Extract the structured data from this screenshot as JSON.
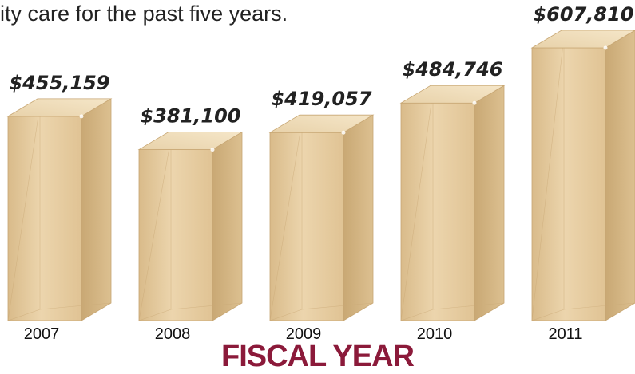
{
  "caption": "ity care for the past five years.",
  "chart_data": {
    "type": "bar",
    "categories": [
      "2007",
      "2008",
      "2009",
      "2010",
      "2011"
    ],
    "values": [
      455159,
      381100,
      419057,
      484746,
      607810
    ],
    "value_labels": [
      "$455,159",
      "$381,100",
      "$419,057",
      "$484,746",
      "$607,810"
    ],
    "title": "",
    "xlabel": "FISCAL YEAR",
    "ylabel": "",
    "grid": false,
    "style": "3d-box",
    "colors": {
      "front": "#e4c89c",
      "side": "#cfb07e",
      "top": "#f1dfbe"
    }
  }
}
